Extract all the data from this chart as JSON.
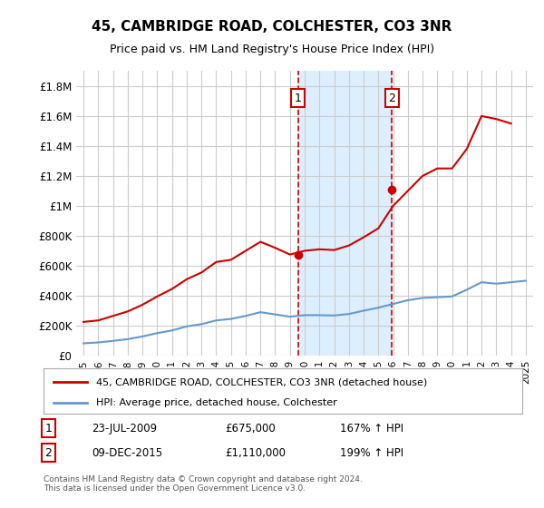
{
  "title": "45, CAMBRIDGE ROAD, COLCHESTER, CO3 3NR",
  "subtitle": "Price paid vs. HM Land Registry's House Price Index (HPI)",
  "legend_line1": "45, CAMBRIDGE ROAD, COLCHESTER, CO3 3NR (detached house)",
  "legend_line2": "HPI: Average price, detached house, Colchester",
  "annotation1_date": "23-JUL-2009",
  "annotation1_price": "£675,000",
  "annotation1_hpi": "167% ↑ HPI",
  "annotation2_date": "09-DEC-2015",
  "annotation2_price": "£1,110,000",
  "annotation2_hpi": "199% ↑ HPI",
  "footer": "Contains HM Land Registry data © Crown copyright and database right 2024.\nThis data is licensed under the Open Government Licence v3.0.",
  "vline1_x": 2009.55,
  "vline2_x": 2015.92,
  "sale1_y": 675000,
  "sale2_y": 1110000,
  "ylim": [
    0,
    1900000
  ],
  "xlim": [
    1994.5,
    2025.5
  ],
  "background_color": "#ffffff",
  "grid_color": "#cccccc",
  "red_color": "#cc0000",
  "blue_color": "#6699cc",
  "shade_color": "#ddeeff",
  "vline_color": "#cc0000",
  "hpi_years": [
    1995,
    1996,
    1997,
    1998,
    1999,
    2000,
    2001,
    2002,
    2003,
    2004,
    2005,
    2006,
    2007,
    2008,
    2009,
    2010,
    2011,
    2012,
    2013,
    2014,
    2015,
    2016,
    2017,
    2018,
    2019,
    2020,
    2021,
    2022,
    2023,
    2024,
    2025
  ],
  "hpi_values": [
    82000,
    88000,
    98000,
    110000,
    128000,
    150000,
    168000,
    195000,
    210000,
    235000,
    245000,
    265000,
    290000,
    275000,
    260000,
    270000,
    270000,
    268000,
    278000,
    300000,
    320000,
    345000,
    370000,
    385000,
    390000,
    395000,
    440000,
    490000,
    480000,
    490000,
    500000
  ],
  "red_years": [
    1995,
    1996,
    1997,
    1998,
    1999,
    2000,
    2001,
    2002,
    2003,
    2004,
    2005,
    2006,
    2007,
    2008,
    2009,
    2010,
    2011,
    2012,
    2013,
    2014,
    2015,
    2016,
    2017,
    2018,
    2019,
    2020,
    2021,
    2022,
    2023,
    2024
  ],
  "red_values": [
    225000,
    235000,
    265000,
    295000,
    340000,
    395000,
    445000,
    510000,
    555000,
    625000,
    640000,
    700000,
    760000,
    720000,
    675000,
    700000,
    710000,
    705000,
    735000,
    790000,
    850000,
    1000000,
    1100000,
    1200000,
    1250000,
    1250000,
    1380000,
    1600000,
    1580000,
    1550000
  ]
}
